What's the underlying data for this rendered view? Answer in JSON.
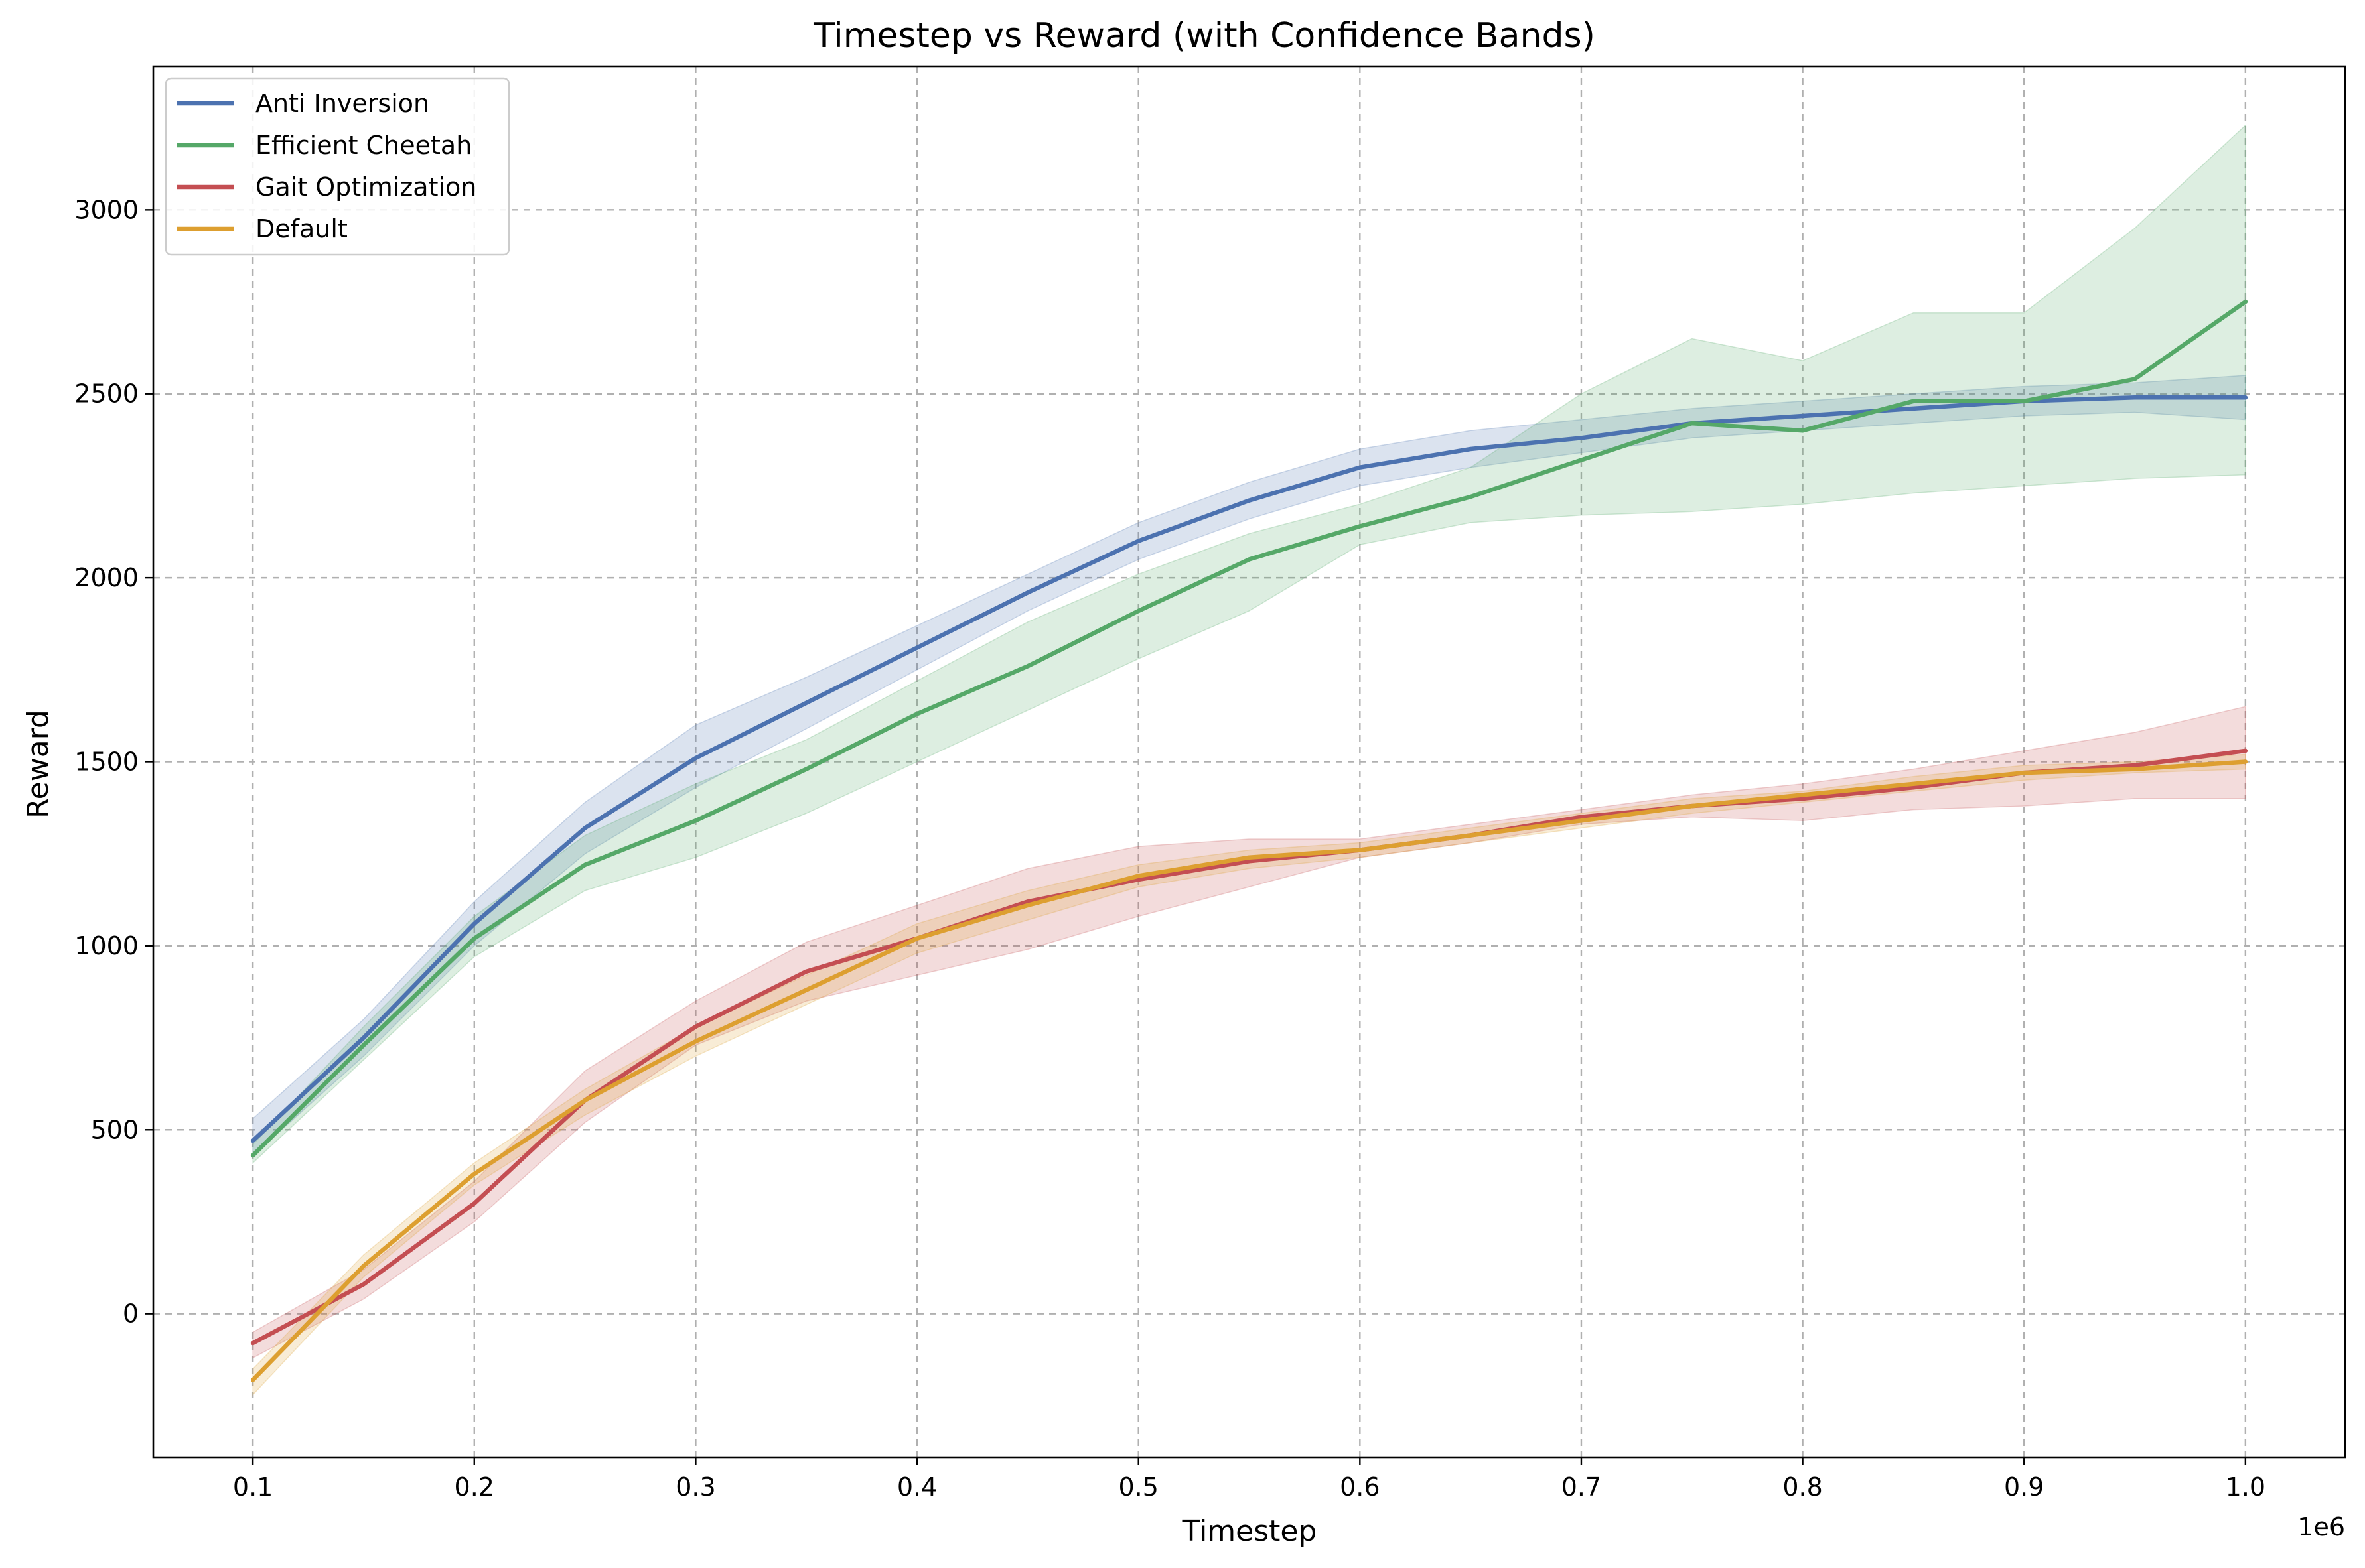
{
  "chart_data": {
    "type": "line",
    "title": "Timestep vs Reward (with Confidence Bands)",
    "xlabel": "Timestep",
    "ylabel": "Reward",
    "x_offset_label": "1e6",
    "xlim": [
      0.055,
      1.045
    ],
    "ylim": [
      -390,
      3390
    ],
    "x_ticks": [
      0.1,
      0.2,
      0.3,
      0.4,
      0.5,
      0.6,
      0.7,
      0.8,
      0.9,
      1.0
    ],
    "x_tick_labels": [
      "0.1",
      "0.2",
      "0.3",
      "0.4",
      "0.5",
      "0.6",
      "0.7",
      "0.8",
      "0.9",
      "1.0"
    ],
    "y_ticks": [
      0,
      500,
      1000,
      1500,
      2000,
      2500,
      3000
    ],
    "y_tick_labels": [
      "0",
      "500",
      "1000",
      "1500",
      "2000",
      "2500",
      "3000"
    ],
    "grid": true,
    "legend_position": "top-left",
    "x": [
      0.1,
      0.15,
      0.2,
      0.25,
      0.3,
      0.35,
      0.4,
      0.45,
      0.5,
      0.55,
      0.6,
      0.65,
      0.7,
      0.75,
      0.8,
      0.85,
      0.9,
      0.95,
      1.0
    ],
    "series": [
      {
        "name": "Anti Inversion",
        "color": "#4c72b0",
        "values": [
          470,
          750,
          1060,
          1320,
          1510,
          1660,
          1810,
          1960,
          2100,
          2210,
          2300,
          2350,
          2380,
          2420,
          2440,
          2460,
          2480,
          2490,
          2490
        ],
        "lower": [
          430,
          700,
          1000,
          1250,
          1430,
          1590,
          1750,
          1910,
          2050,
          2160,
          2250,
          2300,
          2340,
          2380,
          2400,
          2420,
          2440,
          2450,
          2430
        ],
        "upper": [
          530,
          800,
          1120,
          1390,
          1600,
          1730,
          1870,
          2010,
          2150,
          2260,
          2350,
          2400,
          2430,
          2460,
          2480,
          2500,
          2520,
          2530,
          2550
        ]
      },
      {
        "name": "Efficient Cheetah",
        "color": "#55a868",
        "values": [
          430,
          730,
          1020,
          1220,
          1340,
          1480,
          1630,
          1760,
          1910,
          2050,
          2140,
          2220,
          2320,
          2420,
          2400,
          2480,
          2480,
          2540,
          2750
        ],
        "lower": [
          410,
          690,
          970,
          1150,
          1240,
          1360,
          1500,
          1640,
          1780,
          1910,
          2090,
          2150,
          2170,
          2180,
          2200,
          2230,
          2250,
          2270,
          2280
        ],
        "upper": [
          460,
          780,
          1080,
          1300,
          1440,
          1560,
          1720,
          1880,
          2010,
          2120,
          2200,
          2300,
          2500,
          2650,
          2590,
          2720,
          2720,
          2950,
          3230
        ]
      },
      {
        "name": "Gait Optimization",
        "color": "#c44e52",
        "values": [
          -80,
          80,
          300,
          580,
          780,
          930,
          1020,
          1120,
          1180,
          1230,
          1260,
          1300,
          1350,
          1380,
          1400,
          1430,
          1470,
          1490,
          1530
        ],
        "lower": [
          -120,
          40,
          250,
          520,
          730,
          850,
          920,
          990,
          1080,
          1160,
          1240,
          1280,
          1330,
          1350,
          1340,
          1370,
          1380,
          1400,
          1400
        ],
        "upper": [
          -50,
          120,
          360,
          660,
          850,
          1010,
          1110,
          1210,
          1270,
          1290,
          1290,
          1330,
          1370,
          1410,
          1440,
          1480,
          1530,
          1580,
          1650
        ]
      },
      {
        "name": "Default",
        "color": "#dd9f30",
        "values": [
          -180,
          130,
          380,
          580,
          740,
          880,
          1020,
          1110,
          1190,
          1240,
          1260,
          1300,
          1340,
          1380,
          1410,
          1440,
          1470,
          1480,
          1500
        ],
        "lower": [
          -220,
          100,
          350,
          540,
          700,
          840,
          980,
          1070,
          1160,
          1210,
          1240,
          1280,
          1320,
          1360,
          1390,
          1420,
          1450,
          1470,
          1480
        ],
        "upper": [
          -150,
          160,
          410,
          610,
          780,
          920,
          1060,
          1150,
          1220,
          1260,
          1280,
          1320,
          1360,
          1400,
          1420,
          1460,
          1490,
          1500,
          1520
        ]
      }
    ]
  }
}
